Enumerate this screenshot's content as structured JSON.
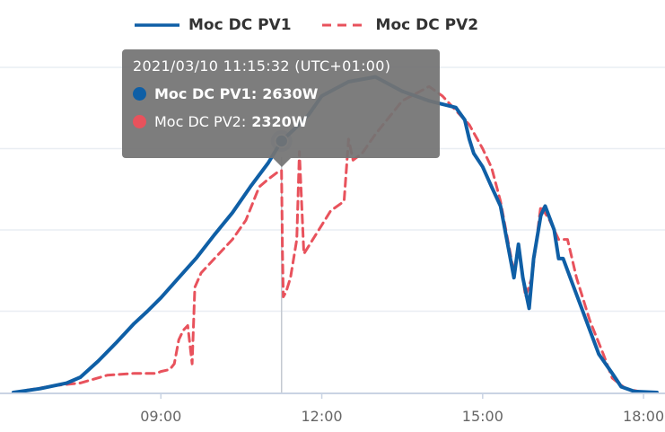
{
  "chart_data": {
    "type": "line",
    "x_label": "",
    "y_label": "",
    "x_ticks": [
      "09:00",
      "12:00",
      "15:00",
      "18:00"
    ],
    "x_range_hours": [
      6.0,
      18.4
    ],
    "y_range_w": [
      0,
      3400
    ],
    "grid": true,
    "legend_position": "top",
    "series": [
      {
        "name": "Moc DC PV1",
        "color": "#0f5fa6",
        "style": "solid",
        "points": [
          [
            "06:15",
            0
          ],
          [
            "06:45",
            40
          ],
          [
            "07:15",
            100
          ],
          [
            "07:30",
            160
          ],
          [
            "07:50",
            330
          ],
          [
            "08:10",
            520
          ],
          [
            "08:30",
            720
          ],
          [
            "08:45",
            850
          ],
          [
            "09:00",
            990
          ],
          [
            "09:20",
            1200
          ],
          [
            "09:40",
            1410
          ],
          [
            "10:00",
            1650
          ],
          [
            "10:20",
            1880
          ],
          [
            "10:40",
            2150
          ],
          [
            "11:00",
            2400
          ],
          [
            "11:15",
            2630
          ],
          [
            "11:30",
            2760
          ],
          [
            "11:45",
            2900
          ],
          [
            "12:00",
            3100
          ],
          [
            "12:30",
            3250
          ],
          [
            "13:00",
            3300
          ],
          [
            "13:30",
            3150
          ],
          [
            "14:00",
            3050
          ],
          [
            "14:30",
            2980
          ],
          [
            "14:40",
            2850
          ],
          [
            "14:45",
            2650
          ],
          [
            "14:50",
            2500
          ],
          [
            "15:00",
            2360
          ],
          [
            "15:10",
            2150
          ],
          [
            "15:20",
            1950
          ],
          [
            "15:25",
            1700
          ],
          [
            "15:35",
            1200
          ],
          [
            "15:40",
            1550
          ],
          [
            "15:45",
            1200
          ],
          [
            "15:52",
            880
          ],
          [
            "15:57",
            1400
          ],
          [
            "16:05",
            1850
          ],
          [
            "16:10",
            1950
          ],
          [
            "16:20",
            1700
          ],
          [
            "16:25",
            1400
          ],
          [
            "16:30",
            1400
          ],
          [
            "16:40",
            1150
          ],
          [
            "16:50",
            900
          ],
          [
            "17:00",
            650
          ],
          [
            "17:10",
            400
          ],
          [
            "17:25",
            200
          ],
          [
            "17:35",
            60
          ],
          [
            "17:50",
            10
          ],
          [
            "18:15",
            0
          ]
        ]
      },
      {
        "name": "Moc DC PV2",
        "color": "#e8525c",
        "style": "dashed",
        "points": [
          [
            "06:15",
            0
          ],
          [
            "07:00",
            70
          ],
          [
            "07:30",
            100
          ],
          [
            "08:00",
            180
          ],
          [
            "08:30",
            200
          ],
          [
            "08:55",
            200
          ],
          [
            "09:00",
            220
          ],
          [
            "09:10",
            240
          ],
          [
            "09:15",
            300
          ],
          [
            "09:20",
            550
          ],
          [
            "09:25",
            650
          ],
          [
            "09:30",
            700
          ],
          [
            "09:35",
            300
          ],
          [
            "09:38",
            1100
          ],
          [
            "09:45",
            1250
          ],
          [
            "10:00",
            1400
          ],
          [
            "10:20",
            1600
          ],
          [
            "10:35",
            1800
          ],
          [
            "10:50",
            2150
          ],
          [
            "11:00",
            2230
          ],
          [
            "11:10",
            2300
          ],
          [
            "11:15",
            2320
          ],
          [
            "11:16",
            1500
          ],
          [
            "11:17",
            1000
          ],
          [
            "11:20",
            1050
          ],
          [
            "11:25",
            1200
          ],
          [
            "11:32",
            1600
          ],
          [
            "11:35",
            2520
          ],
          [
            "11:40",
            1450
          ],
          [
            "11:50",
            1600
          ],
          [
            "12:10",
            1900
          ],
          [
            "12:25",
            2000
          ],
          [
            "12:30",
            2650
          ],
          [
            "12:35",
            2430
          ],
          [
            "12:45",
            2500
          ],
          [
            "13:00",
            2700
          ],
          [
            "13:30",
            3050
          ],
          [
            "14:00",
            3200
          ],
          [
            "14:15",
            3100
          ],
          [
            "14:30",
            2950
          ],
          [
            "14:45",
            2800
          ],
          [
            "15:00",
            2550
          ],
          [
            "15:10",
            2350
          ],
          [
            "15:20",
            2000
          ],
          [
            "15:35",
            1250
          ],
          [
            "15:40",
            1550
          ],
          [
            "15:48",
            1000
          ],
          [
            "15:55",
            1200
          ],
          [
            "16:05",
            1950
          ],
          [
            "16:15",
            1800
          ],
          [
            "16:25",
            1600
          ],
          [
            "16:35",
            1600
          ],
          [
            "16:45",
            1200
          ],
          [
            "17:00",
            750
          ],
          [
            "17:15",
            400
          ],
          [
            "17:25",
            150
          ],
          [
            "17:40",
            40
          ],
          [
            "18:00",
            0
          ]
        ]
      }
    ]
  },
  "tooltip": {
    "header": "2021/03/10 11:15:32 (UTC+01:00)",
    "time": "11:15",
    "rows": [
      {
        "name": "Moc DC PV1",
        "value": "2630W",
        "color": "#0f5fa6"
      },
      {
        "name": "Moc DC PV2",
        "value": "2320W",
        "color": "#e8525c"
      }
    ]
  },
  "legend": [
    {
      "label": "Moc DC PV1",
      "color": "#0f5fa6",
      "style": "solid"
    },
    {
      "label": "Moc DC PV2",
      "color": "#e8525c",
      "style": "dashed"
    }
  ]
}
